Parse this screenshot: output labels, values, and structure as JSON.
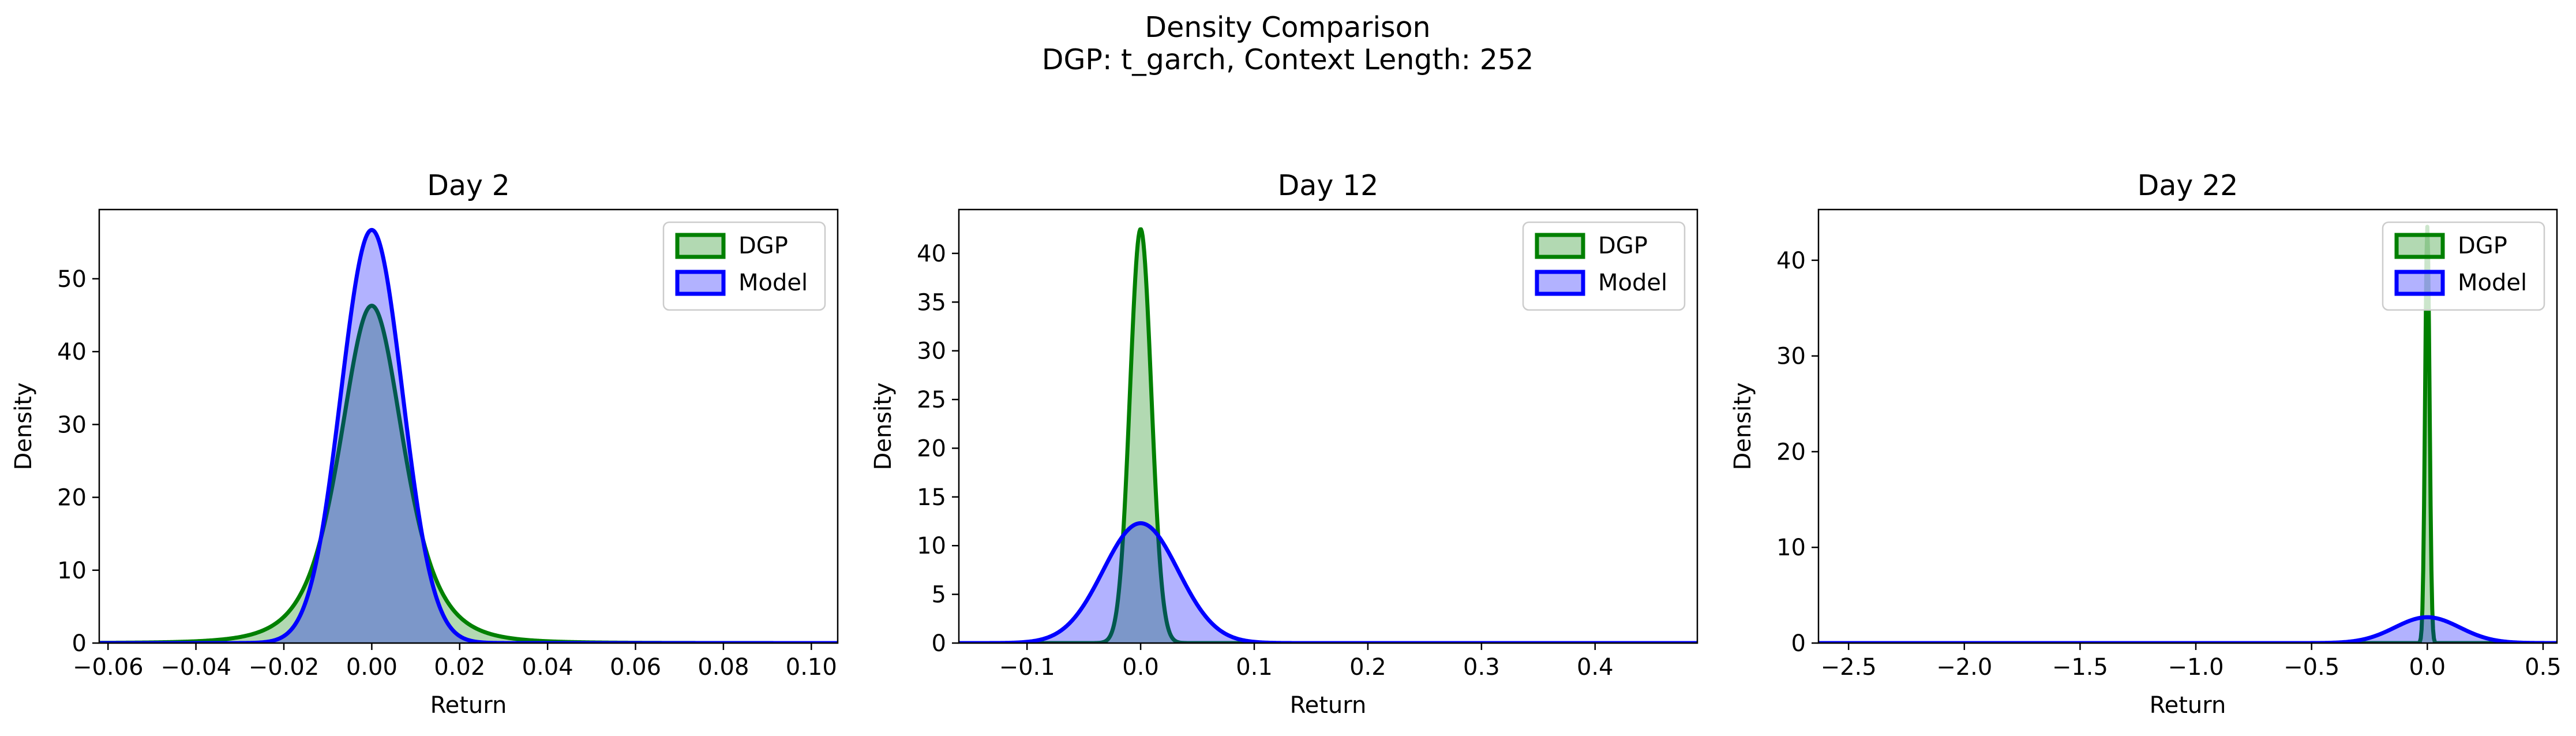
{
  "figure": {
    "title_line1": "Density Comparison",
    "title_line2": "DGP: t_garch, Context Length: 252"
  },
  "colors": {
    "dgp": "#008000",
    "model": "#0000ff",
    "dgp_fill": "rgba(0,128,0,0.3)",
    "model_fill": "rgba(0,0,255,0.3)"
  },
  "chart_data": [
    {
      "type": "area",
      "title": "Day 2",
      "xlabel": "Return",
      "ylabel": "Density",
      "xlim": [
        -0.062,
        0.106
      ],
      "ylim": [
        0,
        59.5
      ],
      "xticks": [
        -0.06,
        -0.04,
        -0.02,
        0.0,
        0.02,
        0.04,
        0.06,
        0.08,
        0.1
      ],
      "xtick_labels": [
        "−0.06",
        "−0.04",
        "−0.02",
        "0.00",
        "0.02",
        "0.04",
        "0.06",
        "0.08",
        "0.10"
      ],
      "yticks": [
        0,
        10,
        20,
        30,
        40,
        50
      ],
      "ytick_labels": [
        "0",
        "10",
        "20",
        "30",
        "40",
        "50"
      ],
      "legend": "upper right",
      "series": [
        {
          "name": "DGP",
          "kind": "t",
          "peak": 46.3,
          "loc": 0.0,
          "scale": 0.0075,
          "df": 4
        },
        {
          "name": "Model",
          "kind": "normal",
          "peak": 56.7,
          "loc": 0.0,
          "sd": 0.007
        }
      ]
    },
    {
      "type": "area",
      "title": "Day 12",
      "xlabel": "Return",
      "ylabel": "Density",
      "xlim": [
        -0.16,
        0.49
      ],
      "ylim": [
        0,
        44.5
      ],
      "xticks": [
        -0.1,
        0.0,
        0.1,
        0.2,
        0.3,
        0.4
      ],
      "xtick_labels": [
        "−0.1",
        "0.0",
        "0.1",
        "0.2",
        "0.3",
        "0.4"
      ],
      "yticks": [
        0,
        5,
        10,
        15,
        20,
        25,
        30,
        35,
        40
      ],
      "ytick_labels": [
        "0",
        "5",
        "10",
        "15",
        "20",
        "25",
        "30",
        "35",
        "40"
      ],
      "legend": "upper right",
      "series": [
        {
          "name": "DGP",
          "kind": "normal",
          "peak": 42.5,
          "loc": 0.0,
          "sd": 0.0094
        },
        {
          "name": "Model",
          "kind": "normal",
          "peak": 12.3,
          "loc": 0.0,
          "sd": 0.033
        }
      ]
    },
    {
      "type": "area",
      "title": "Day 22",
      "xlabel": "Return",
      "ylabel": "Density",
      "xlim": [
        -2.63,
        0.56
      ],
      "ylim": [
        0,
        45.3
      ],
      "xticks": [
        -2.5,
        -2.0,
        -1.5,
        -1.0,
        -0.5,
        0.0,
        0.5
      ],
      "xtick_labels": [
        "−2.5",
        "−2.0",
        "−1.5",
        "−1.0",
        "−0.5",
        "0.0",
        "0.5"
      ],
      "yticks": [
        0,
        10,
        20,
        30,
        40
      ],
      "ytick_labels": [
        "0",
        "10",
        "20",
        "30",
        "40"
      ],
      "legend": "upper right",
      "series": [
        {
          "name": "DGP",
          "kind": "normal",
          "peak": 43.5,
          "loc": 0.0,
          "sd": 0.0095
        },
        {
          "name": "Model",
          "kind": "normal",
          "peak": 2.7,
          "loc": 0.0,
          "sd": 0.14
        }
      ]
    }
  ]
}
